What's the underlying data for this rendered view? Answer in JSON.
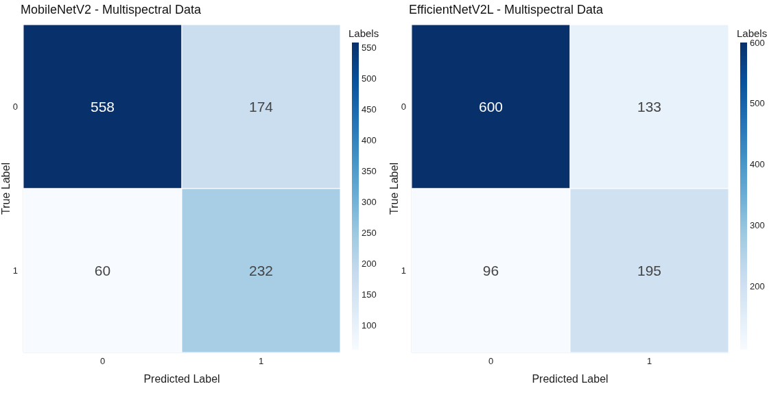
{
  "chart_data": [
    {
      "type": "heatmap",
      "title": "MobileNetV2 - Multispectral Data",
      "xlabel": "Predicted Label",
      "ylabel": "True Label",
      "clabel": "Labels",
      "categories": [
        "0",
        "1"
      ],
      "y_categories": [
        "0",
        "1"
      ],
      "cells": [
        [
          558,
          174
        ],
        [
          60,
          232
        ]
      ],
      "clim": [
        60,
        558
      ],
      "cticks": [
        100,
        150,
        200,
        250,
        300,
        350,
        400,
        450,
        500,
        550
      ],
      "data_labels": true
    },
    {
      "type": "heatmap",
      "title": "EfficientNetV2L - Multispectral Data",
      "xlabel": "Predicted Label",
      "ylabel": "True Label",
      "clabel": "Labels",
      "categories": [
        "0",
        "1"
      ],
      "y_categories": [
        "0",
        "1"
      ],
      "cells": [
        [
          600,
          133
        ],
        [
          96,
          195
        ]
      ],
      "clim": [
        96,
        600
      ],
      "cticks": [
        200,
        300,
        400,
        500,
        600
      ],
      "data_labels": true
    }
  ]
}
